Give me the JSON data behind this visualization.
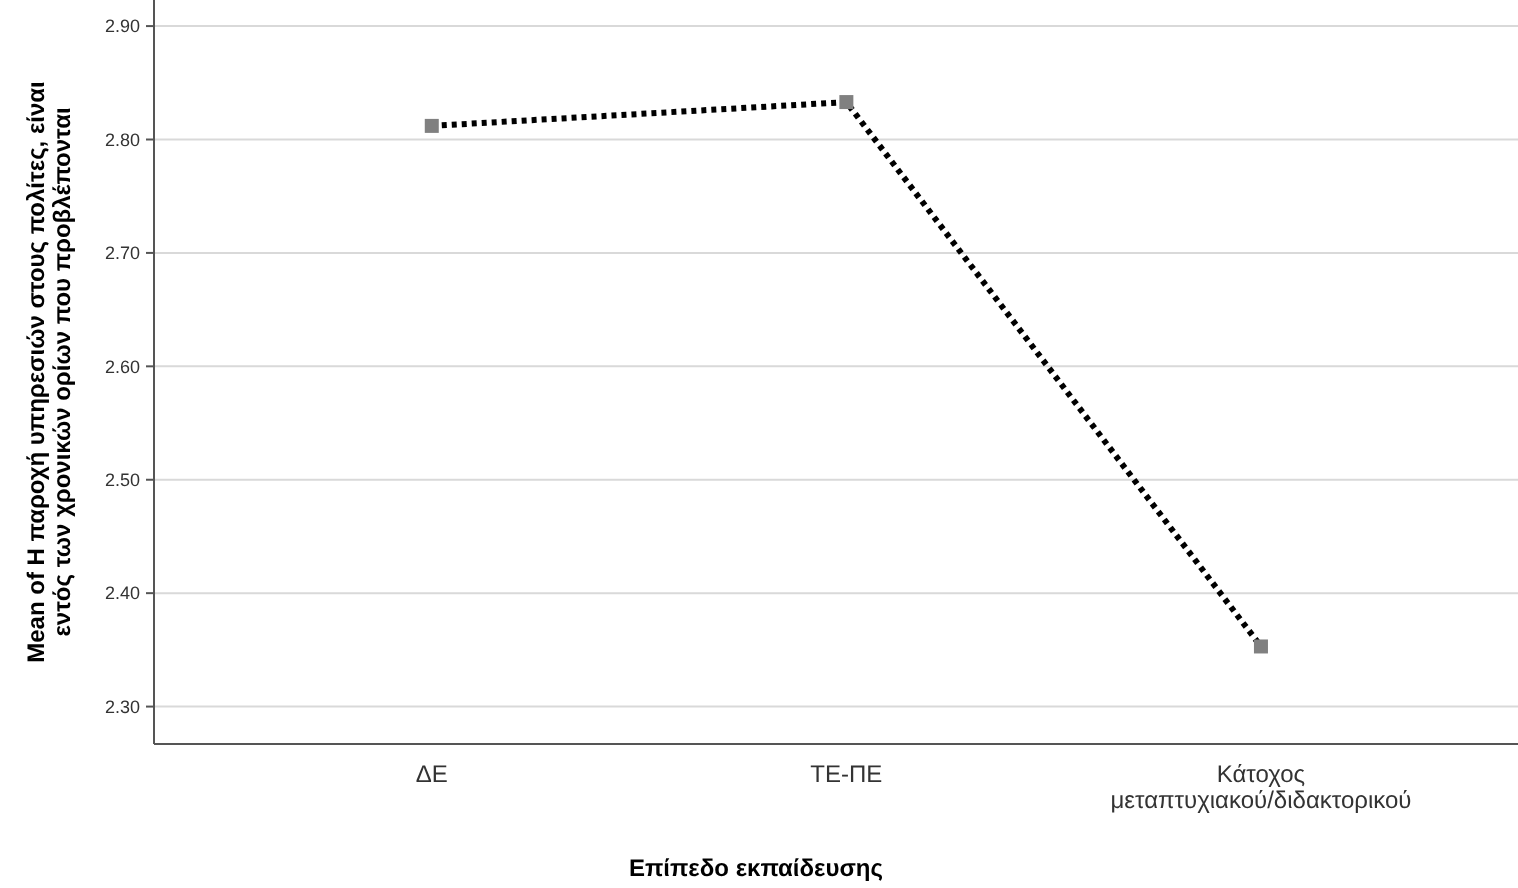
{
  "chart_data": {
    "type": "line",
    "xlabel": "Επίπεδο εκπαίδευσης",
    "ylabel": "Mean of Η παροχή υπηρεσιών στους πολίτες, είναι εντός των χρονικών ορίων που προβλέπονται",
    "categories": [
      "ΔΕ",
      "ΤΕ-ΠΕ",
      "Κάτοχος μεταπτυχιακού/διδακτορικού"
    ],
    "series": [
      {
        "color": "#000000",
        "values": [
          2.812,
          2.833,
          2.353
        ]
      }
    ],
    "marker": "square",
    "line_style": "dotted",
    "grid": "y",
    "ylim": [
      2.267,
      2.923
    ],
    "yticks": [
      {
        "value": 2.3,
        "label": "2.30"
      },
      {
        "value": 2.4,
        "label": "2.40"
      },
      {
        "value": 2.5,
        "label": "2.50"
      },
      {
        "value": 2.6,
        "label": "2.60"
      },
      {
        "value": 2.7,
        "label": "2.70"
      },
      {
        "value": 2.8,
        "label": "2.80"
      },
      {
        "value": 2.9,
        "label": "2.90"
      }
    ]
  }
}
